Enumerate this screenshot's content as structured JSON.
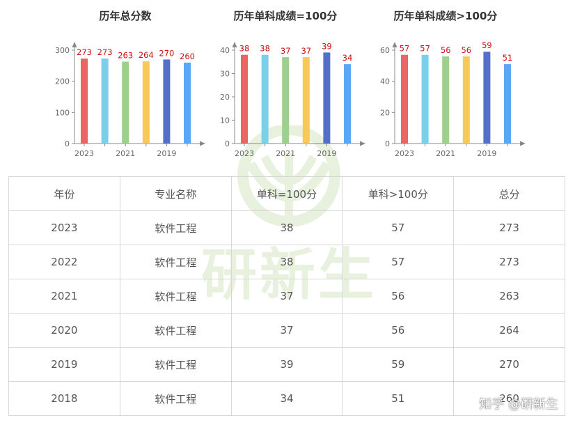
{
  "chart_data": [
    {
      "type": "bar",
      "title": "历年总分数",
      "categories": [
        "2023",
        "2022",
        "2021",
        "2020",
        "2019",
        "2018"
      ],
      "tick_labels": [
        "2023",
        "2021",
        "2019"
      ],
      "values": [
        273,
        273,
        263,
        264,
        270,
        260
      ],
      "ylim": [
        0,
        300
      ],
      "yticks": [
        0,
        100,
        200,
        300
      ],
      "grid": false,
      "colors": [
        "#e86666",
        "#7ccfe8",
        "#9bd18a",
        "#f7c85a",
        "#5470c6",
        "#5aa8f5"
      ],
      "label_color": "#cc1111"
    },
    {
      "type": "bar",
      "title": "历年单科成绩=100分",
      "categories": [
        "2023",
        "2022",
        "2021",
        "2020",
        "2019",
        "2018"
      ],
      "tick_labels": [
        "2023",
        "2021",
        "2019"
      ],
      "values": [
        38,
        38,
        37,
        37,
        39,
        34
      ],
      "ylim": [
        0,
        40
      ],
      "yticks": [
        0,
        10,
        20,
        30,
        40
      ],
      "grid": false,
      "colors": [
        "#e86666",
        "#7ccfe8",
        "#9bd18a",
        "#f7c85a",
        "#5470c6",
        "#5aa8f5"
      ],
      "label_color": "#cc1111"
    },
    {
      "type": "bar",
      "title": "历年单科成绩>100分",
      "categories": [
        "2023",
        "2022",
        "2021",
        "2020",
        "2019",
        "2018"
      ],
      "tick_labels": [
        "2023",
        "2021",
        "2019"
      ],
      "values": [
        57,
        57,
        56,
        56,
        59,
        51
      ],
      "ylim": [
        0,
        60
      ],
      "yticks": [
        0,
        20,
        40,
        60
      ],
      "grid": false,
      "colors": [
        "#e86666",
        "#7ccfe8",
        "#9bd18a",
        "#f7c85a",
        "#5470c6",
        "#5aa8f5"
      ],
      "label_color": "#cc1111"
    }
  ],
  "table": {
    "headers": [
      "年份",
      "专业名称",
      "单科=100分",
      "单科>100分",
      "总分"
    ],
    "rows": [
      [
        "2023",
        "软件工程",
        "38",
        "57",
        "273"
      ],
      [
        "2022",
        "软件工程",
        "38",
        "57",
        "273"
      ],
      [
        "2021",
        "软件工程",
        "37",
        "56",
        "263"
      ],
      [
        "2020",
        "软件工程",
        "37",
        "56",
        "264"
      ],
      [
        "2019",
        "软件工程",
        "39",
        "59",
        "270"
      ],
      [
        "2018",
        "软件工程",
        "34",
        "51",
        "260"
      ]
    ]
  },
  "watermark": {
    "text": "研新生",
    "color": "#6fae3a"
  },
  "credit": "知乎 @研新生"
}
